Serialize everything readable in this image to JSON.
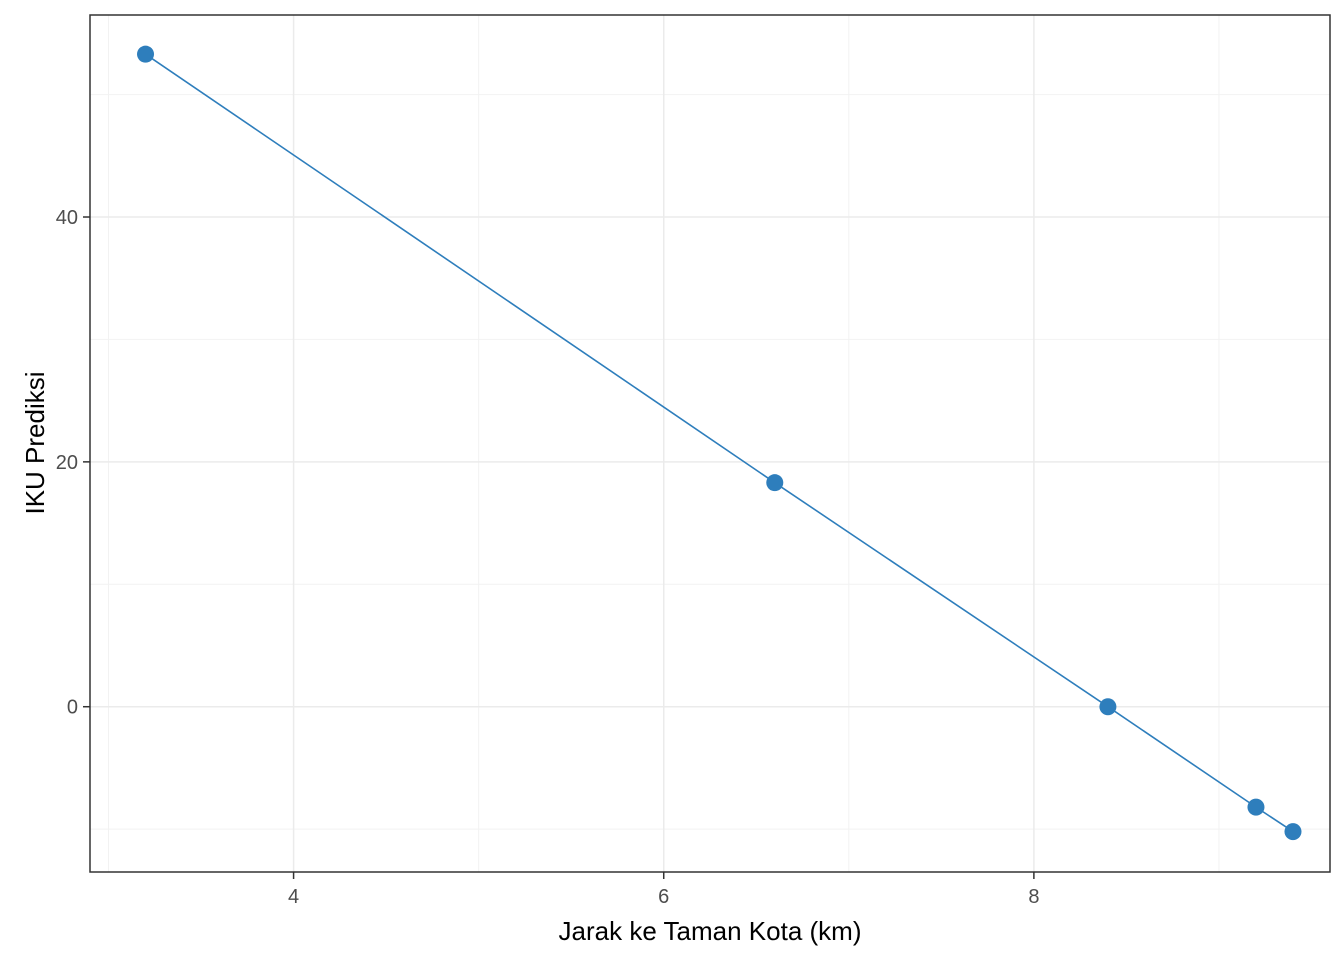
{
  "chart_data": {
    "type": "line",
    "title": "",
    "xlabel": "Jarak ke Taman Kota (km)",
    "ylabel": "IKU Prediksi",
    "xlim": [
      2.9,
      9.6
    ],
    "ylim": [
      -13.5,
      56.5
    ],
    "x_ticks": [
      4,
      6,
      8
    ],
    "x_tick_labels": [
      "4",
      "6",
      "8"
    ],
    "y_ticks": [
      0,
      20,
      40
    ],
    "y_tick_labels": [
      "0",
      "20",
      "40"
    ],
    "x_minor_ticks": [
      3,
      5,
      7,
      9
    ],
    "y_minor_ticks": [
      -10,
      10,
      30,
      50
    ],
    "grid": true,
    "legend": "none",
    "series": [
      {
        "x": [
          3.2,
          6.6,
          8.4,
          9.2,
          9.4
        ],
        "y": [
          53.3,
          18.3,
          0.0,
          -8.2,
          -10.2
        ],
        "color": "#2e7ebc",
        "markers": true
      }
    ]
  }
}
